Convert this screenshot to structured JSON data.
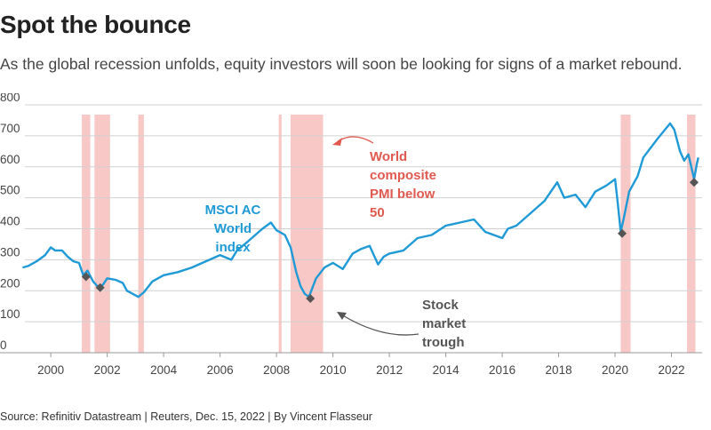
{
  "header": {
    "title": "Spot the bounce",
    "subtitle": "As the global recession unfolds, equity investors will soon be looking for signs of a market rebound."
  },
  "footer": {
    "source": "Source: Refinitiv Datastream | Reuters, Dec. 15, 2022 | By Vincent Flasseur"
  },
  "colors": {
    "line": "#1f9ad6",
    "band": "#f8c8c6",
    "trough": "#555555",
    "pmi_label": "#e05a4f",
    "index_label": "#1f9ad6",
    "stock_label": "#555555",
    "grid": "#d0d0d0"
  },
  "chart_data": {
    "type": "line",
    "title": "Spot the bounce",
    "xlabel": "",
    "ylabel": "",
    "xlim": [
      1998.2,
      2023.4
    ],
    "ylim": [
      0,
      800
    ],
    "grid": true,
    "y_ticks": [
      0,
      100,
      200,
      300,
      400,
      500,
      600,
      700,
      800
    ],
    "x_ticks": [
      2000,
      2002,
      2004,
      2006,
      2008,
      2010,
      2012,
      2014,
      2016,
      2018,
      2020,
      2022
    ],
    "series": [
      {
        "name": "MSCI AC World index",
        "x": [
          1999.0,
          1999.2,
          1999.5,
          1999.8,
          2000.0,
          2000.15,
          2000.4,
          2000.6,
          2000.8,
          2001.0,
          2001.15,
          2001.3,
          2001.5,
          2001.7,
          2001.85,
          2002.0,
          2002.3,
          2002.55,
          2002.7,
          2002.9,
          2003.1,
          2003.3,
          2003.6,
          2004.0,
          2004.5,
          2005.0,
          2005.5,
          2006.0,
          2006.4,
          2006.6,
          2007.0,
          2007.5,
          2007.8,
          2008.0,
          2008.3,
          2008.5,
          2008.7,
          2008.85,
          2009.0,
          2009.15,
          2009.4,
          2009.7,
          2010.0,
          2010.35,
          2010.7,
          2011.0,
          2011.3,
          2011.6,
          2011.8,
          2012.0,
          2012.5,
          2013.0,
          2013.5,
          2014.0,
          2014.5,
          2015.0,
          2015.4,
          2015.7,
          2016.0,
          2016.2,
          2016.5,
          2017.0,
          2017.5,
          2017.95,
          2018.2,
          2018.6,
          2018.95,
          2019.3,
          2019.7,
          2020.0,
          2020.1,
          2020.2,
          2020.3,
          2020.5,
          2020.8,
          2021.0,
          2021.5,
          2021.95,
          2022.1,
          2022.3,
          2022.45,
          2022.6,
          2022.75,
          2022.8,
          2022.9,
          2022.95
        ],
        "values": [
          275,
          280,
          295,
          315,
          340,
          330,
          330,
          310,
          295,
          290,
          250,
          265,
          230,
          210,
          220,
          240,
          235,
          225,
          200,
          190,
          180,
          195,
          230,
          250,
          260,
          275,
          295,
          315,
          300,
          330,
          360,
          400,
          420,
          395,
          380,
          340,
          260,
          215,
          190,
          180,
          240,
          275,
          290,
          270,
          320,
          335,
          345,
          285,
          310,
          320,
          330,
          370,
          380,
          410,
          420,
          430,
          390,
          380,
          370,
          400,
          410,
          450,
          490,
          550,
          500,
          510,
          470,
          520,
          540,
          560,
          480,
          390,
          430,
          520,
          570,
          630,
          690,
          740,
          720,
          650,
          620,
          640,
          580,
          560,
          610,
          630
        ]
      }
    ],
    "shaded_periods": [
      {
        "label": "World composite PMI below 50",
        "start": 2001.1,
        "end": 2001.4
      },
      {
        "label": "World composite PMI below 50",
        "start": 2001.55,
        "end": 2002.1
      },
      {
        "label": "World composite PMI below 50",
        "start": 2003.1,
        "end": 2003.3
      },
      {
        "label": "World composite PMI below 50",
        "start": 2008.08,
        "end": 2008.18
      },
      {
        "label": "World composite PMI below 50",
        "start": 2008.5,
        "end": 2009.65
      },
      {
        "label": "World composite PMI below 50",
        "start": 2020.2,
        "end": 2020.55
      },
      {
        "label": "World composite PMI below 50",
        "start": 2022.55,
        "end": 2022.85
      }
    ],
    "stock_market_troughs": [
      {
        "x": 2001.25,
        "y": 245
      },
      {
        "x": 2001.75,
        "y": 210
      },
      {
        "x": 2009.2,
        "y": 175
      },
      {
        "x": 2020.25,
        "y": 385
      },
      {
        "x": 2022.8,
        "y": 550
      }
    ],
    "annotations": [
      {
        "lines": [
          "MSCI AC",
          "World",
          "index"
        ]
      },
      {
        "lines": [
          "World",
          "composite",
          "PMI below",
          "50"
        ]
      },
      {
        "lines": [
          "Stock",
          "market",
          "trough"
        ]
      }
    ]
  }
}
